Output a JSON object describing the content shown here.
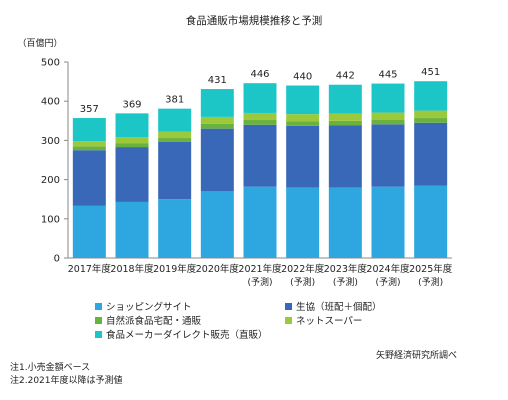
{
  "chart_data": {
    "type": "bar",
    "stacked": true,
    "title": "食品通販市場規模推移と予測",
    "unit_label": "（百億円）",
    "ylim": [
      0,
      500
    ],
    "yticks": [
      0,
      100,
      200,
      300,
      400,
      500
    ],
    "grid": false,
    "categories": [
      "2017年度",
      "2018年度",
      "2019年度",
      "2020年度",
      "2021年度",
      "2022年度",
      "2023年度",
      "2024年度",
      "2025年度"
    ],
    "category_sublabels": [
      "",
      "",
      "",
      "",
      "(予測)",
      "(予測)",
      "(予測)",
      "(予測)",
      "(予測)"
    ],
    "totals": [
      357,
      369,
      381,
      431,
      446,
      440,
      442,
      445,
      451
    ],
    "series": [
      {
        "name": "ショッピングサイト",
        "color": "#2ea7e0",
        "values": [
          133,
          143,
          150,
          170,
          182,
          180,
          180,
          182,
          185
        ]
      },
      {
        "name": "生協（班配＋個配）",
        "color": "#3a68b8",
        "values": [
          142,
          140,
          146,
          160,
          158,
          157,
          158,
          159,
          160
        ]
      },
      {
        "name": "自然派食品宅配・通販",
        "color": "#6ab23e",
        "values": [
          10,
          10,
          10,
          12,
          12,
          12,
          12,
          12,
          12
        ]
      },
      {
        "name": "ネットスーパー",
        "color": "#9cc83c",
        "values": [
          13,
          15,
          16,
          18,
          18,
          18,
          18,
          18,
          19
        ]
      },
      {
        "name": "食品メーカーダイレクト販売（直販）",
        "color": "#1cc6c6",
        "values": [
          59,
          61,
          59,
          71,
          76,
          73,
          74,
          74,
          75
        ]
      }
    ],
    "legend_position": "bottom"
  },
  "source": "矢野経済研究所調べ",
  "notes": [
    "注1.小売金額ベース",
    "注2.2021年度以降は予測値"
  ]
}
